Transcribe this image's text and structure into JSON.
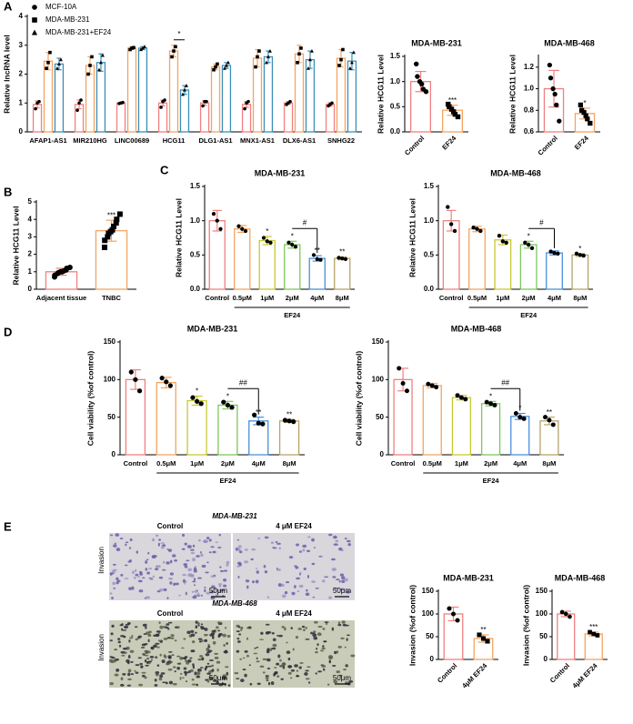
{
  "panel_labels": [
    "A",
    "B",
    "C",
    "D",
    "E"
  ],
  "micrographs": {
    "rows": [
      {
        "title": "MDA-MB-231",
        "columns": [
          "Control",
          "4 μM EF24"
        ],
        "y_label": "Invasion"
      },
      {
        "title": "MDA-MB-468",
        "columns": [
          "Control",
          "4 μM EF24"
        ],
        "y_label": "Invasion"
      }
    ],
    "scale_bar": "50μm"
  },
  "chart_data": [
    {
      "type": "bar",
      "y_label": "Relative lncRNA level",
      "categories": [
        "AFAP1-AS1",
        "MIR210HG",
        "LINC00689",
        "HCG11",
        "DLG1-AS1",
        "MNX1-AS1",
        "DLX6-AS1",
        "SNHG22"
      ],
      "series": [
        {
          "name": "MCF-10A",
          "color": "#f08080",
          "marker": "circle",
          "values": [
            0.95,
            0.95,
            1.0,
            1.0,
            1.0,
            0.95,
            1.0,
            0.95
          ],
          "errors": [
            0.12,
            0.15,
            0.03,
            0.1,
            0.08,
            0.1,
            0.05,
            0.06
          ],
          "points": [
            [
              0.8,
              1.0,
              1.05
            ],
            [
              0.75,
              1.0,
              1.1
            ],
            [
              0.98,
              1.0,
              1.02
            ],
            [
              0.85,
              1.05,
              1.1
            ],
            [
              0.9,
              1.05,
              1.05
            ],
            [
              0.8,
              1.0,
              1.05
            ],
            [
              0.95,
              1.0,
              1.05
            ],
            [
              0.9,
              0.95,
              1.0
            ]
          ]
        },
        {
          "name": "MDA-MB-231",
          "color": "#f4a460",
          "marker": "square",
          "values": [
            2.45,
            2.3,
            2.9,
            2.8,
            2.25,
            2.55,
            2.7,
            2.55
          ],
          "errors": [
            0.3,
            0.3,
            0.05,
            0.2,
            0.1,
            0.3,
            0.3,
            0.3
          ],
          "points": [
            [
              2.2,
              2.4,
              2.75
            ],
            [
              2.0,
              2.3,
              2.6
            ],
            [
              2.85,
              2.9,
              2.92
            ],
            [
              2.6,
              2.8,
              2.95
            ],
            [
              2.15,
              2.25,
              2.35
            ],
            [
              2.25,
              2.6,
              2.8
            ],
            [
              2.4,
              2.7,
              2.9
            ],
            [
              2.3,
              2.5,
              2.85
            ]
          ]
        },
        {
          "name": "MDA-MB-231+EF24",
          "color": "#3a8fb7",
          "marker": "triangle",
          "values": [
            2.35,
            2.4,
            2.9,
            1.45,
            2.3,
            2.6,
            2.5,
            2.45
          ],
          "errors": [
            0.2,
            0.3,
            0.05,
            0.15,
            0.1,
            0.2,
            0.3,
            0.3
          ],
          "points": [
            [
              2.2,
              2.35,
              2.5
            ],
            [
              2.15,
              2.4,
              2.65
            ],
            [
              2.85,
              2.9,
              2.95
            ],
            [
              1.3,
              1.45,
              1.6
            ],
            [
              2.2,
              2.3,
              2.4
            ],
            [
              2.4,
              2.6,
              2.8
            ],
            [
              2.2,
              2.5,
              2.8
            ],
            [
              2.2,
              2.4,
              2.75
            ]
          ]
        }
      ],
      "comparisons": [
        {
          "category": "HCG11",
          "text": "*"
        }
      ],
      "ylim": [
        0,
        4
      ],
      "yticks": [
        0,
        1,
        2,
        3,
        4
      ]
    },
    {
      "type": "bar",
      "title": "MDA-MB-231",
      "y_label": "Relative HCG11 Level",
      "categories": [
        "Control",
        "EF24"
      ],
      "values": [
        1.0,
        0.43
      ],
      "errors": [
        0.2,
        0.1
      ],
      "points": [
        [
          1.35,
          1.1,
          1.0,
          0.95,
          0.85,
          0.8
        ],
        [
          0.55,
          0.5,
          0.45,
          0.4,
          0.35,
          0.3
        ]
      ],
      "colors": [
        "#f08080",
        "#f4a460"
      ],
      "markers": [
        "circle",
        "square"
      ],
      "stars": [
        null,
        "***"
      ],
      "ylim": [
        0,
        1.5
      ],
      "yticks": [
        {
          "value": 0,
          "label": "0.0"
        },
        {
          "value": 0.5,
          "label": "0.5"
        },
        {
          "value": 1,
          "label": "1.0"
        },
        {
          "value": 1.5,
          "label": "1.5"
        }
      ]
    },
    {
      "type": "bar",
      "title": "MDA-MB-468",
      "y_label": "Relative HCG11 Level",
      "categories": [
        "Control",
        "EF24"
      ],
      "values": [
        1.0,
        0.77
      ],
      "errors": [
        0.17,
        0.05
      ],
      "points": [
        [
          1.22,
          1.1,
          1.0,
          0.95,
          0.85,
          0.7
        ],
        [
          0.85,
          0.8,
          0.78,
          0.75,
          0.72,
          0.68
        ]
      ],
      "colors": [
        "#f08080",
        "#f4a460"
      ],
      "markers": [
        "circle",
        "square"
      ],
      "stars": [
        null,
        "*"
      ],
      "ylim": [
        0.6,
        1.3
      ],
      "yticks": [
        0.6,
        0.8,
        {
          "value": 1,
          "label": "1.0"
        },
        1.2
      ]
    },
    {
      "type": "bar",
      "y_label": "Relative HCG11 Level",
      "categories": [
        "Adjacent tissue",
        "TNBC"
      ],
      "values": [
        1.0,
        3.35
      ],
      "errors": [
        0.2,
        0.6
      ],
      "points": [
        [
          0.7,
          0.8,
          0.9,
          0.95,
          1.0,
          1.0,
          1.05,
          1.1,
          1.2,
          1.25
        ],
        [
          2.4,
          2.8,
          3.0,
          3.2,
          3.3,
          3.4,
          3.6,
          3.8,
          4.0,
          4.3
        ]
      ],
      "colors": [
        "#f08080",
        "#f4a460"
      ],
      "markers": [
        "circle",
        "square"
      ],
      "stars": [
        null,
        "***"
      ],
      "ylim": [
        0,
        5
      ],
      "yticks": [
        0,
        1,
        2,
        3,
        4,
        5
      ]
    },
    {
      "type": "bar",
      "title": "MDA-MB-231",
      "y_label": "Relative HCG11 Level",
      "categories": [
        "Control",
        "0.5μM",
        "1μM",
        "2μM",
        "4μM",
        "8μM"
      ],
      "values": [
        1.0,
        0.88,
        0.71,
        0.65,
        0.45,
        0.45
      ],
      "errors": [
        0.15,
        0.05,
        0.06,
        0.05,
        0.04,
        0.02
      ],
      "points": [
        [
          1.1,
          1.0,
          0.88
        ],
        [
          0.92,
          0.88,
          0.85
        ],
        [
          0.75,
          0.7,
          0.68
        ],
        [
          0.68,
          0.65,
          0.62
        ],
        [
          0.5,
          0.44,
          0.43
        ],
        [
          0.46,
          0.45,
          0.44
        ]
      ],
      "colors": [
        "#f08080",
        "#f4a460",
        "#c8c832",
        "#7cc95a",
        "#4a90d9",
        "#b5a46a"
      ],
      "stars": [
        null,
        null,
        "*",
        "*",
        "**",
        "**"
      ],
      "comparisons": [
        {
          "between": [
            "2μM",
            "4μM"
          ],
          "text": "#"
        }
      ],
      "group_label": "EF24",
      "ylim": [
        0,
        1.5
      ],
      "yticks": [
        {
          "value": 0,
          "label": "0.0"
        },
        {
          "value": 0.5,
          "label": "0.5"
        },
        {
          "value": 1,
          "label": "1.0"
        },
        {
          "value": 1.5,
          "label": "1.5"
        }
      ]
    },
    {
      "type": "bar",
      "title": "MDA-MB-468",
      "y_label": "Relative HCG11 Level",
      "categories": [
        "Control",
        "0.5μM",
        "1μM",
        "2μM",
        "4μM",
        "8μM"
      ],
      "values": [
        1.0,
        0.88,
        0.72,
        0.65,
        0.53,
        0.5
      ],
      "errors": [
        0.15,
        0.04,
        0.07,
        0.05,
        0.03,
        0.02
      ],
      "points": [
        [
          1.2,
          0.95,
          0.85
        ],
        [
          0.9,
          0.88,
          0.85
        ],
        [
          0.78,
          0.7,
          0.68
        ],
        [
          0.68,
          0.65,
          0.6
        ],
        [
          0.55,
          0.53,
          0.52
        ],
        [
          0.52,
          0.5,
          0.49
        ]
      ],
      "colors": [
        "#f08080",
        "#f4a460",
        "#c8c832",
        "#7cc95a",
        "#4a90d9",
        "#b5a46a"
      ],
      "stars": [
        null,
        null,
        null,
        "*",
        null,
        "*"
      ],
      "comparisons": [
        {
          "between": [
            "2μM",
            "4μM"
          ],
          "text": "#"
        }
      ],
      "group_label": "EF24",
      "ylim": [
        0,
        1.5
      ],
      "yticks": [
        {
          "value": 0,
          "label": "0.0"
        },
        {
          "value": 0.5,
          "label": "0.5"
        },
        {
          "value": 1,
          "label": "1.0"
        },
        {
          "value": 1.5,
          "label": "1.5"
        }
      ]
    },
    {
      "type": "bar",
      "title": "MDA-MB-231",
      "y_label": "Cell viability (%of control)",
      "categories": [
        "Control",
        "0.5μM",
        "1μM",
        "2μM",
        "4μM",
        "8μM"
      ],
      "values": [
        100,
        96,
        72,
        66,
        45,
        45
      ],
      "errors": [
        13,
        7,
        6,
        5,
        5,
        2
      ],
      "points": [
        [
          110,
          100,
          85
        ],
        [
          102,
          97,
          92
        ],
        [
          76,
          71,
          68
        ],
        [
          70,
          66,
          63
        ],
        [
          53,
          42,
          41
        ],
        [
          46,
          45,
          44
        ]
      ],
      "colors": [
        "#f08080",
        "#f4a460",
        "#c8c832",
        "#7cc95a",
        "#4a90d9",
        "#b5a46a"
      ],
      "stars": [
        null,
        null,
        "*",
        "*",
        "**",
        "**"
      ],
      "comparisons": [
        {
          "between": [
            "2μM",
            "4μM"
          ],
          "text": "##"
        }
      ],
      "group_label": "EF24",
      "ylim": [
        0,
        150
      ],
      "yticks": [
        0,
        50,
        100,
        150
      ]
    },
    {
      "type": "bar",
      "title": "MDA-MB-468",
      "y_label": "Cell viability (%of control)",
      "categories": [
        "Control",
        "0.5μM",
        "1μM",
        "2μM",
        "4μM",
        "8μM"
      ],
      "values": [
        100,
        92,
        76,
        68,
        51,
        45
      ],
      "errors": [
        15,
        3,
        3,
        3,
        4,
        5
      ],
      "points": [
        [
          115,
          95,
          85
        ],
        [
          94,
          92,
          90
        ],
        [
          79,
          76,
          74
        ],
        [
          70,
          68,
          66
        ],
        [
          55,
          50,
          48
        ],
        [
          50,
          46,
          40
        ]
      ],
      "colors": [
        "#f08080",
        "#f4a460",
        "#c8c832",
        "#7cc95a",
        "#4a90d9",
        "#b5a46a"
      ],
      "stars": [
        null,
        null,
        null,
        "*",
        "*",
        "**"
      ],
      "comparisons": [
        {
          "between": [
            "2μM",
            "4μM"
          ],
          "text": "##"
        }
      ],
      "group_label": "EF24",
      "ylim": [
        0,
        150
      ],
      "yticks": [
        0,
        50,
        100,
        150
      ]
    },
    {
      "type": "bar",
      "title": "MDA-MB-231",
      "y_label": "Invasion (%of control)",
      "categories": [
        "Control",
        "4μM EF24"
      ],
      "values": [
        100,
        46
      ],
      "errors": [
        15,
        8
      ],
      "points": [
        [
          112,
          100,
          86
        ],
        [
          54,
          46,
          40
        ]
      ],
      "colors": [
        "#f08080",
        "#f4a460"
      ],
      "markers": [
        "circle",
        "square"
      ],
      "stars": [
        null,
        "**"
      ],
      "ylim": [
        0,
        150
      ],
      "yticks": [
        0,
        50,
        100,
        150
      ]
    },
    {
      "type": "bar",
      "title": "MDA-MB-468",
      "y_label": "Invasion (%of control)",
      "categories": [
        "Control",
        "4μM EF24"
      ],
      "values": [
        100,
        56
      ],
      "errors": [
        6,
        4
      ],
      "points": [
        [
          104,
          100,
          94
        ],
        [
          60,
          56,
          53
        ]
      ],
      "colors": [
        "#f08080",
        "#f4a460"
      ],
      "markers": [
        "circle",
        "square"
      ],
      "stars": [
        null,
        "***"
      ],
      "ylim": [
        0,
        150
      ],
      "yticks": [
        0,
        50,
        100,
        150
      ]
    }
  ]
}
